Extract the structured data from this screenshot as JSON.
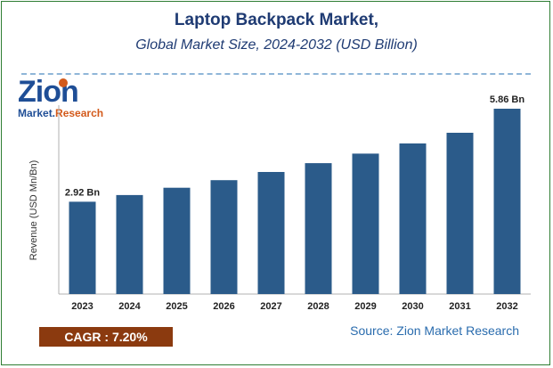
{
  "header": {
    "title": "Laptop Backpack Market,",
    "subtitle": "Global Market Size, 2024-2032 (USD Billion)"
  },
  "logo": {
    "brand": "Zion",
    "sub_left": "Market.",
    "sub_right": "Research"
  },
  "footer": {
    "cagr": "CAGR :  7.20%",
    "source": "Source: Zion Market Research"
  },
  "colors": {
    "bar": "#2b5b8a",
    "title": "#1f3b73",
    "cagr_bg": "#8b3a0f",
    "source": "#2a6cae"
  },
  "chart_data": {
    "type": "bar",
    "categories": [
      "2023",
      "2024",
      "2025",
      "2026",
      "2027",
      "2028",
      "2029",
      "2030",
      "2031",
      "2032"
    ],
    "values": [
      2.92,
      3.13,
      3.36,
      3.6,
      3.86,
      4.14,
      4.44,
      4.76,
      5.1,
      5.86
    ],
    "data_labels": [
      {
        "index": 0,
        "text": "2.92 Bn"
      },
      {
        "index": 9,
        "text": "5.86 Bn"
      }
    ],
    "title": "Laptop Backpack Market,",
    "subtitle": "Global Market Size, 2024-2032 (USD Billion)",
    "xlabel": "",
    "ylabel": "Revenue (USD Mn/Bn)",
    "ylim": [
      0,
      5.86
    ],
    "grid": false,
    "legend": "none"
  }
}
